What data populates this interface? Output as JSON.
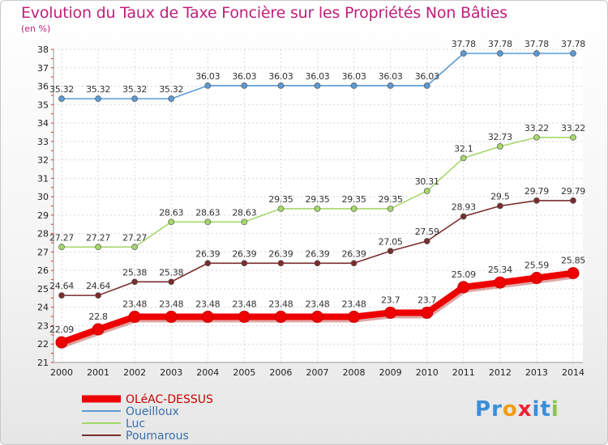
{
  "title": "Evolution du Taux de Taxe Foncière sur les Propriétés Non Bâties",
  "subtitle": "(en %)",
  "logo": {
    "letters": [
      "P",
      "r",
      "o",
      "x",
      "i",
      "t",
      "i"
    ],
    "colors": [
      "#3a8fd9",
      "#3a8fd9",
      "#f39c12",
      "#e23",
      "#3a8fd9",
      "#3a8fd9",
      "#8bc34a"
    ]
  },
  "chart_data": {
    "type": "line",
    "title": "Evolution du Taux de Taxe Foncière sur les Propriétés Non Bâties",
    "ylabel": "(en %)",
    "ylim": [
      21,
      38
    ],
    "yticks": [
      21,
      22,
      23,
      24,
      25,
      26,
      27,
      28,
      29,
      30,
      31,
      32,
      33,
      34,
      35,
      36,
      37,
      38
    ],
    "x": [
      "2000",
      "2001",
      "2002",
      "2003",
      "2004",
      "2005",
      "2006",
      "2007",
      "2008",
      "2009",
      "2010",
      "2011",
      "2012",
      "2013",
      "2014"
    ],
    "grid": true,
    "legend": "bottom-left",
    "series": [
      {
        "name": "Oueilloux",
        "color": "#5b9bd5",
        "values": [
          35.32,
          35.32,
          35.32,
          35.32,
          36.03,
          36.03,
          36.03,
          36.03,
          36.03,
          36.03,
          36.03,
          37.78,
          37.78,
          37.78,
          37.78
        ],
        "labels": [
          "35.32",
          "35.32",
          "35.32",
          "35.32",
          "36.03",
          "36.03",
          "36.03",
          "36.03",
          "36.03",
          "36.03",
          "36.03",
          "37.78",
          "37.78",
          "37.78",
          "37.78"
        ]
      },
      {
        "name": "Luc",
        "color": "#a6d86a",
        "values": [
          27.27,
          27.27,
          27.27,
          28.63,
          28.63,
          28.63,
          29.35,
          29.35,
          29.35,
          29.35,
          30.31,
          32.1,
          32.73,
          33.22,
          33.22
        ],
        "labels": [
          "27.27",
          "27.27",
          "27.27",
          "28.63",
          "28.63",
          "28.63",
          "29.35",
          "29.35",
          "29.35",
          "29.35",
          "30.31",
          "32.1",
          "32.73",
          "33.22",
          "33.22"
        ]
      },
      {
        "name": "Poumarous",
        "color": "#7b2c2c",
        "values": [
          24.64,
          24.64,
          25.38,
          25.38,
          26.39,
          26.39,
          26.39,
          26.39,
          26.39,
          27.05,
          27.59,
          28.93,
          29.5,
          29.79,
          29.79
        ],
        "labels": [
          "24.64",
          "24.64",
          "25.38",
          "25.38",
          "26.39",
          "26.39",
          "26.39",
          "26.39",
          "26.39",
          "27.05",
          "27.59",
          "28.93",
          "29.5",
          "29.79",
          "29.79"
        ]
      },
      {
        "name": "OLéAC-DESSUS",
        "color": "#ee0000",
        "values": [
          22.09,
          22.8,
          23.48,
          23.48,
          23.48,
          23.48,
          23.48,
          23.48,
          23.48,
          23.7,
          23.7,
          25.09,
          25.34,
          25.59,
          25.85
        ],
        "labels": [
          "22.09",
          "22.8",
          "23.48",
          "23.48",
          "23.48",
          "23.48",
          "23.48",
          "23.48",
          "23.48",
          "23.7",
          "23.7",
          "25.09",
          "25.34",
          "25.59",
          "25.85"
        ]
      }
    ],
    "legend_order": [
      "OLéAC-DESSUS",
      "Oueilloux",
      "Luc",
      "Poumarous"
    ]
  }
}
